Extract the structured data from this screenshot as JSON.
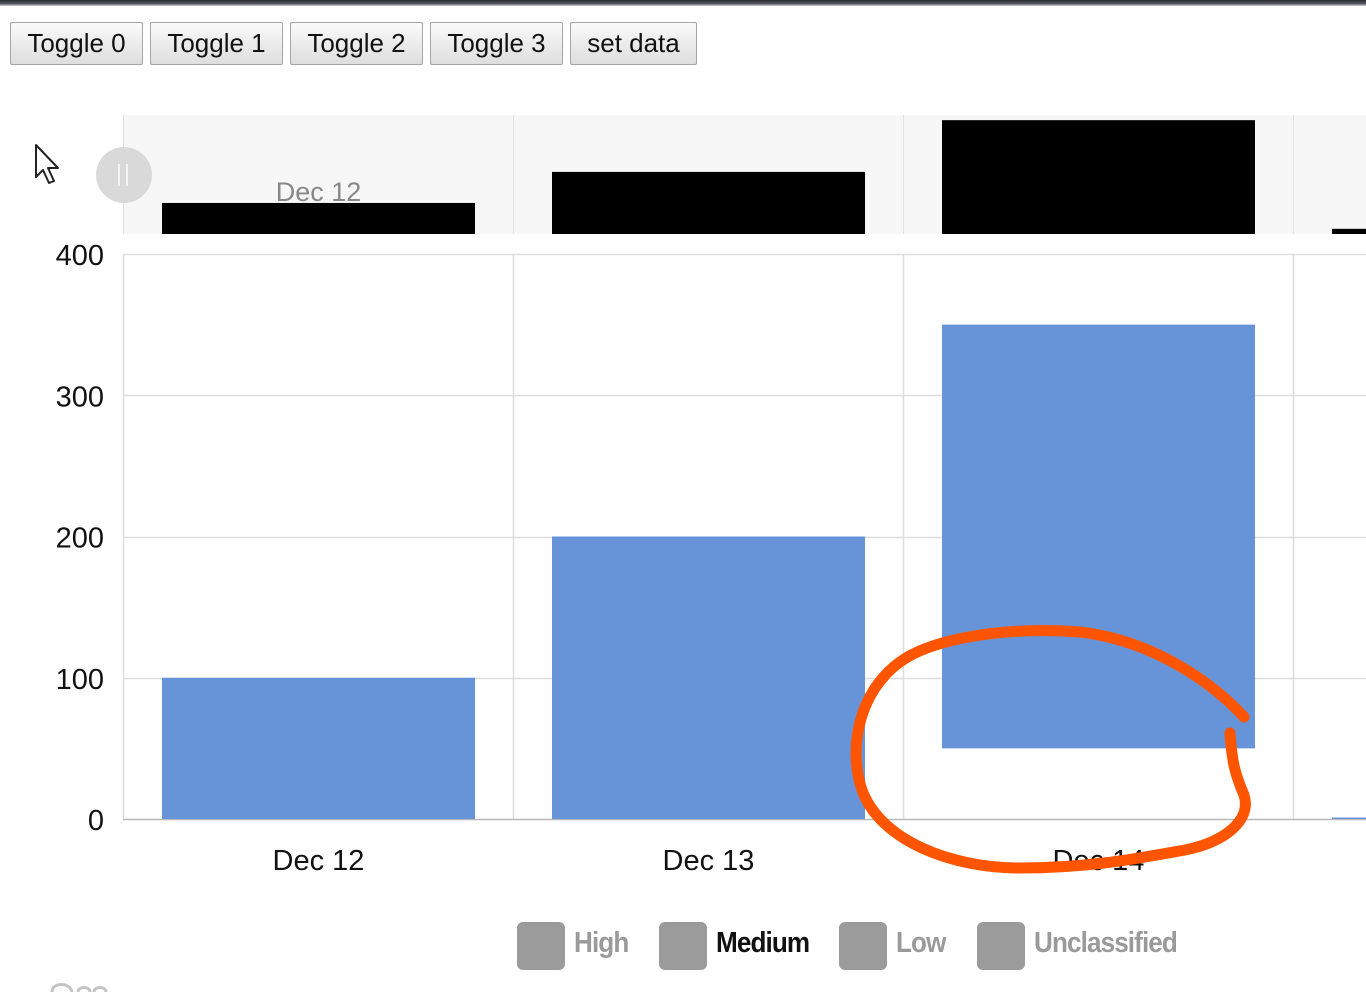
{
  "toolbar": {
    "buttons": [
      {
        "label": "Toggle 0"
      },
      {
        "label": "Toggle 1"
      },
      {
        "label": "Toggle 2"
      },
      {
        "label": "Toggle 3"
      },
      {
        "label": "set data"
      }
    ]
  },
  "navigator": {
    "label": "Dec 12",
    "values": [
      30,
      60,
      110,
      5
    ]
  },
  "legend": {
    "items": [
      {
        "label": "High",
        "active": false
      },
      {
        "label": "Medium",
        "active": true
      },
      {
        "label": "Low",
        "active": false
      },
      {
        "label": "Unclassified",
        "active": false
      }
    ]
  },
  "colors": {
    "bar": "#6794d8",
    "navigator_bar": "#000000",
    "annotation": "#ff5500",
    "legend_swatch": "#9b9b9b"
  },
  "icons": {
    "cursor": "mouse-pointer-icon",
    "scroll_handle": "pause-grip-icon"
  },
  "chart_data": {
    "type": "bar",
    "categories": [
      "Dec 12",
      "Dec 13",
      "Dec 14",
      ""
    ],
    "ranges": [
      [
        0,
        100
      ],
      [
        0,
        200
      ],
      [
        50,
        350
      ],
      [
        0,
        0
      ]
    ],
    "yticks": [
      "400",
      "300",
      "200",
      "100",
      "0"
    ],
    "ylim": [
      0,
      400
    ],
    "title": "",
    "xlabel": "",
    "ylabel": "",
    "grid": true,
    "legend_position": "bottom-center"
  }
}
